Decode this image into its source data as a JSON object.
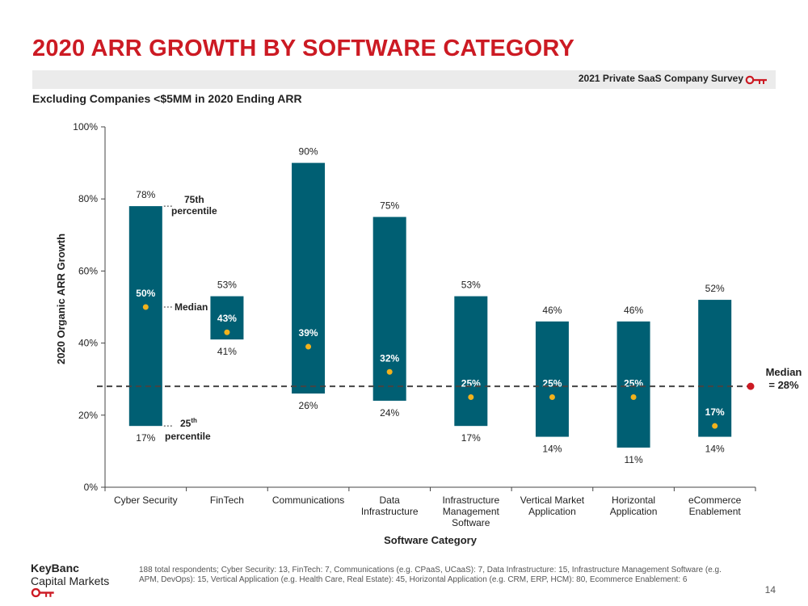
{
  "slide": {
    "title": "2020 ARR GROWTH BY SOFTWARE CATEGORY",
    "survey_label": "2021 Private SaaS Company Survey",
    "subtitle": "Excluding Companies <$5MM in 2020 Ending ARR",
    "brand_line1": "KeyBanc",
    "brand_line2": "Capital Markets",
    "footnote": "188 total respondents; Cyber Security: 13, FinTech: 7, Communications (e.g. CPaaS, UCaaS): 7, Data Infrastructure: 15, Infrastructure Management Software (e.g. APM, DevOps): 15, Vertical Application (e.g. Health Care, Real Estate): 45, Horizontal Application (e.g. CRM, ERP, HCM): 80, Ecommerce Enablement: 6",
    "page_number": "14",
    "colors": {
      "title": "#cc1a23",
      "bar": "#005f73",
      "median_dot": "#f2b21c",
      "overall_median": "#cc1a23"
    }
  },
  "chart_data": {
    "type": "bar",
    "subtype": "floating-range",
    "xlabel": "Software Category",
    "ylabel": "2020 Organic ARR Growth",
    "ylim": [
      0,
      100
    ],
    "yticks": [
      "0%",
      "20%",
      "40%",
      "60%",
      "80%",
      "100%"
    ],
    "categories": [
      [
        "Cyber Security"
      ],
      [
        "FinTech"
      ],
      [
        "Communications"
      ],
      [
        "Data",
        "Infrastructure"
      ],
      [
        "Infrastructure",
        "Management",
        "Software"
      ],
      [
        "Vertical Market",
        "Application"
      ],
      [
        "Horizontal",
        "Application"
      ],
      [
        "eCommerce",
        "Enablement"
      ]
    ],
    "p25": [
      17,
      41,
      26,
      24,
      17,
      14,
      11,
      14
    ],
    "median": [
      50,
      43,
      39,
      32,
      25,
      25,
      25,
      17
    ],
    "p75": [
      78,
      53,
      90,
      75,
      53,
      46,
      46,
      52
    ],
    "p25_labels": [
      "17%",
      "41%",
      "26%",
      "24%",
      "17%",
      "14%",
      "11%",
      "14%"
    ],
    "median_labels": [
      "50%",
      "43%",
      "39%",
      "32%",
      "25%",
      "25%",
      "25%",
      "17%"
    ],
    "p75_labels": [
      "78%",
      "53%",
      "90%",
      "75%",
      "53%",
      "46%",
      "46%",
      "52%"
    ],
    "overall_median": 28,
    "overall_median_label_line1": "Median",
    "overall_median_label_line2": "= 28%",
    "annotations": {
      "p75_line1": "75th",
      "p75_line2": "percentile",
      "median": "Median",
      "p25_num": "25",
      "p25_sup": "th",
      "p25_line2": "percentile"
    }
  }
}
